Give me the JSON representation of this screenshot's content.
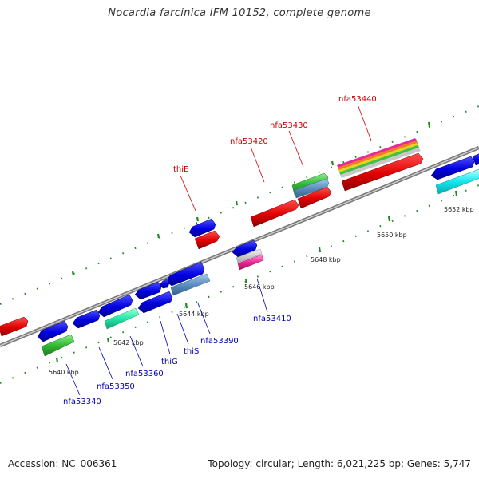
{
  "title": "Nocardia farcinica IFM 10152, complete genome",
  "footer": {
    "accession": "Accession: NC_006361",
    "summary": "Topology: circular; Length: 6,021,225 bp; Genes: 5,747"
  },
  "scale_labels": [
    "5640 kbp",
    "5642 kbp",
    "5644 kbp",
    "5646 kbp",
    "5648 kbp",
    "5650 kbp",
    "5652 kbp"
  ],
  "upper_labels": [
    "thiE",
    "nfa53420",
    "nfa53430",
    "nfa53440"
  ],
  "lower_labels": [
    "nfa53340",
    "nfa53350",
    "nfa53360",
    "thiG",
    "thiS",
    "nfa53390",
    "nfa53410"
  ],
  "colors": {
    "forward_gene": "#d40000",
    "reverse_gene": "#0000e0",
    "cds_green": "#33bb33",
    "cds_steel": "#5a8fc0",
    "cds_aqua": "#22e8a8",
    "cds_cyan": "#11e8ee",
    "tick_green": "#228822",
    "backbone": "#8a8a8a"
  }
}
